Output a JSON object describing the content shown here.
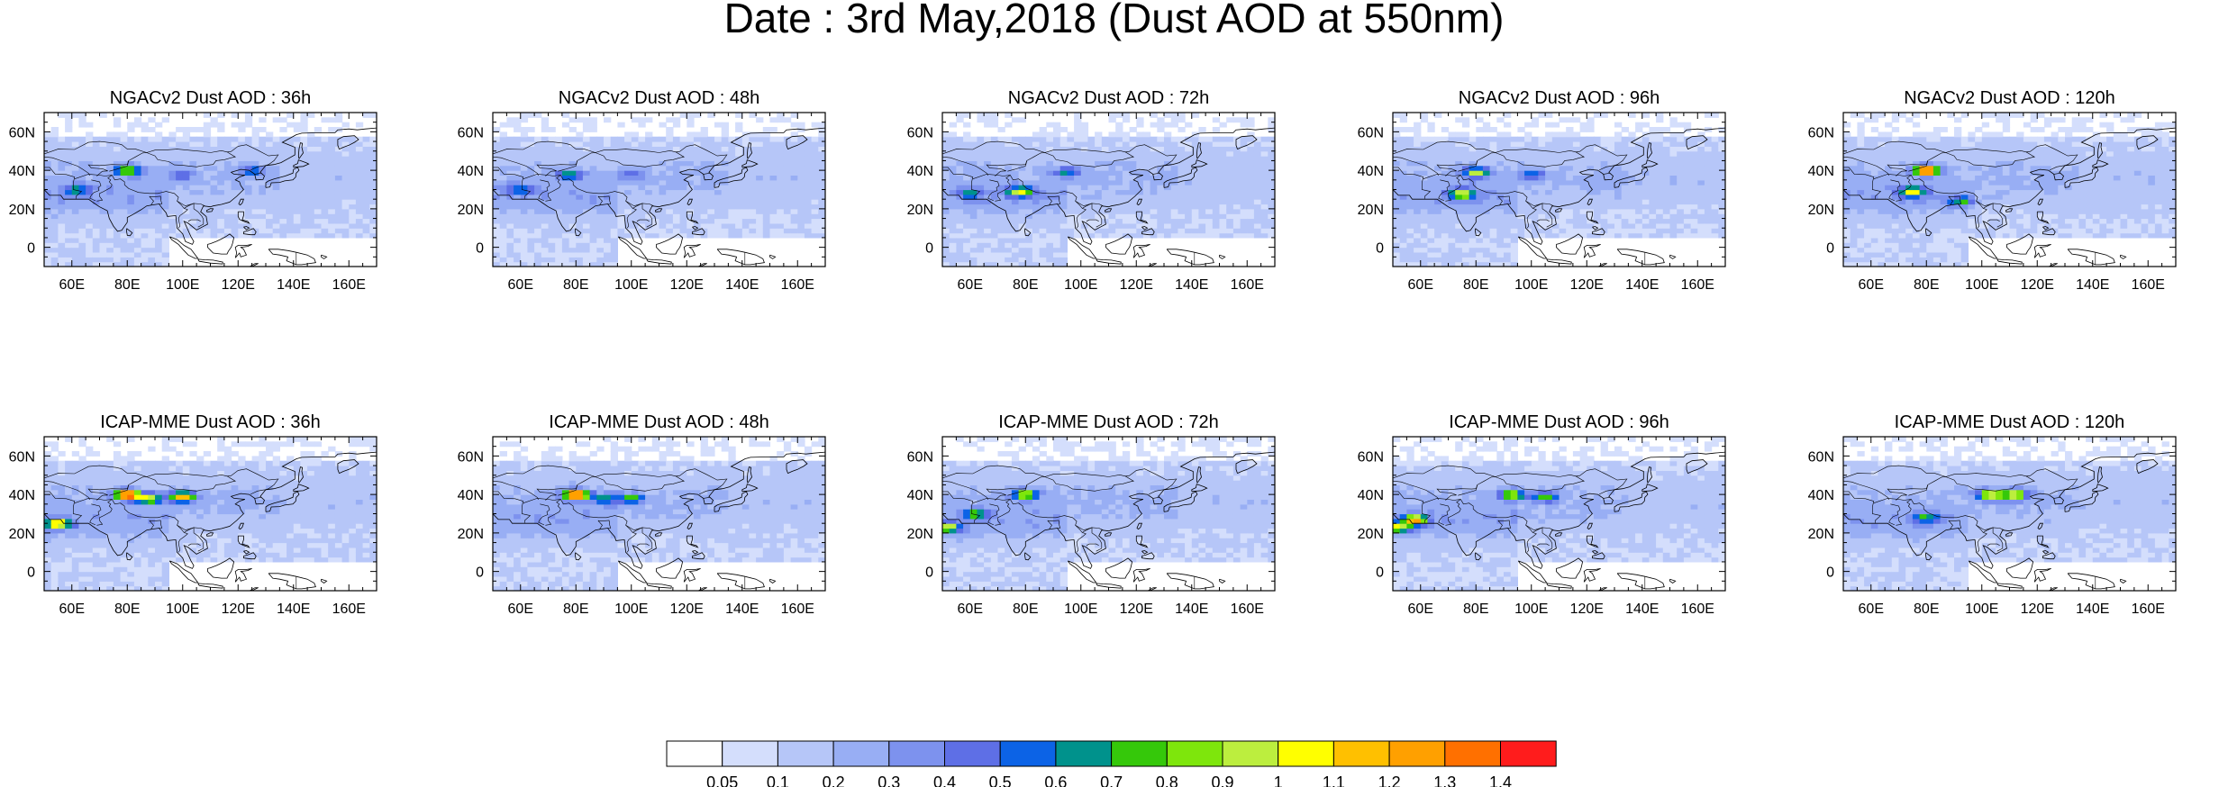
{
  "title": "Date : 3rd May,2018 (Dust AOD at 550nm)",
  "chart_data": {
    "type": "heatmap",
    "variable": "Dust AOD at 550nm",
    "date": "3rd May,2018",
    "x_axis": {
      "range": [
        50,
        170
      ],
      "ticks": [
        60,
        80,
        100,
        120,
        140,
        160
      ],
      "tick_labels": [
        "60E",
        "80E",
        "100E",
        "120E",
        "140E",
        "160E"
      ]
    },
    "y_axis": {
      "range": [
        -10,
        70
      ],
      "ticks": [
        0,
        20,
        40,
        60
      ],
      "tick_labels": [
        "0",
        "20N",
        "40N",
        "60N"
      ]
    },
    "panels": [
      {
        "title": "NGACv2 Dust AOD : 36h",
        "model": "NGACv2",
        "lead_hours": 36,
        "features": [
          {
            "lon": 80,
            "lat": 40,
            "aod": 0.8
          },
          {
            "lon": 62,
            "lat": 30,
            "aod": 0.45
          },
          {
            "lon": 100,
            "lat": 38,
            "aod": 0.3
          },
          {
            "lon": 125,
            "lat": 40,
            "aod": 0.4
          }
        ]
      },
      {
        "title": "NGACv2 Dust AOD : 48h",
        "model": "NGACv2",
        "lead_hours": 48,
        "features": [
          {
            "lon": 78,
            "lat": 38,
            "aod": 0.5
          },
          {
            "lon": 60,
            "lat": 30,
            "aod": 0.4
          },
          {
            "lon": 100,
            "lat": 38,
            "aod": 0.3
          }
        ]
      },
      {
        "title": "NGACv2 Dust AOD : 72h",
        "model": "NGACv2",
        "lead_hours": 72,
        "features": [
          {
            "lon": 78,
            "lat": 29,
            "aod": 0.8
          },
          {
            "lon": 95,
            "lat": 39,
            "aod": 0.45
          },
          {
            "lon": 60,
            "lat": 28,
            "aod": 0.45
          }
        ]
      },
      {
        "title": "NGACv2 Dust AOD : 96h",
        "model": "NGACv2",
        "lead_hours": 96,
        "features": [
          {
            "lon": 80,
            "lat": 39,
            "aod": 0.8
          },
          {
            "lon": 75,
            "lat": 28,
            "aod": 0.85
          },
          {
            "lon": 100,
            "lat": 38,
            "aod": 0.4
          }
        ]
      },
      {
        "title": "NGACv2 Dust AOD : 120h",
        "model": "NGACv2",
        "lead_hours": 120,
        "features": [
          {
            "lon": 80,
            "lat": 40,
            "aod": 1.4
          },
          {
            "lon": 75,
            "lat": 29,
            "aod": 0.8
          },
          {
            "lon": 93,
            "lat": 24,
            "aod": 0.5
          }
        ]
      },
      {
        "title": "ICAP-MME Dust AOD : 36h",
        "model": "ICAP-MME",
        "lead_hours": 36,
        "features": [
          {
            "lon": 80,
            "lat": 40,
            "aod": 1.4
          },
          {
            "lon": 100,
            "lat": 39,
            "aod": 1.0
          },
          {
            "lon": 88,
            "lat": 38,
            "aod": 0.8
          },
          {
            "lon": 55,
            "lat": 25,
            "aod": 1.0
          }
        ]
      },
      {
        "title": "ICAP-MME Dust AOD : 48h",
        "model": "ICAP-MME",
        "lead_hours": 48,
        "features": [
          {
            "lon": 80,
            "lat": 40,
            "aod": 1.4
          },
          {
            "lon": 100,
            "lat": 38,
            "aod": 0.6
          },
          {
            "lon": 90,
            "lat": 38,
            "aod": 0.5
          }
        ]
      },
      {
        "title": "ICAP-MME Dust AOD : 72h",
        "model": "ICAP-MME",
        "lead_hours": 72,
        "features": [
          {
            "lon": 80,
            "lat": 40,
            "aod": 0.8
          },
          {
            "lon": 52,
            "lat": 23,
            "aod": 0.8
          },
          {
            "lon": 62,
            "lat": 30,
            "aod": 0.6
          }
        ]
      },
      {
        "title": "ICAP-MME Dust AOD : 96h",
        "model": "ICAP-MME",
        "lead_hours": 96,
        "features": [
          {
            "lon": 93,
            "lat": 40,
            "aod": 0.8
          },
          {
            "lon": 58,
            "lat": 27,
            "aod": 1.0
          },
          {
            "lon": 52,
            "lat": 23,
            "aod": 0.8
          },
          {
            "lon": 105,
            "lat": 39,
            "aod": 0.6
          }
        ]
      },
      {
        "title": "ICAP-MME Dust AOD : 120h",
        "model": "ICAP-MME",
        "lead_hours": 120,
        "features": [
          {
            "lon": 103,
            "lat": 40,
            "aod": 1.0
          },
          {
            "lon": 112,
            "lat": 40,
            "aod": 0.9
          },
          {
            "lon": 80,
            "lat": 28,
            "aod": 0.5
          }
        ]
      }
    ],
    "colorbar": {
      "labels": [
        "0.05",
        "0.1",
        "0.2",
        "0.3",
        "0.4",
        "0.5",
        "0.6",
        "0.7",
        "0.8",
        "0.9",
        "1",
        "1.1",
        "1.2",
        "1.3",
        "1.4"
      ],
      "colors": [
        "#ffffff",
        "#d4defc",
        "#b6c6f8",
        "#98aef4",
        "#7d92ee",
        "#5e6fe6",
        "#0c63e6",
        "#00928c",
        "#35c80a",
        "#7ee60c",
        "#bcee3e",
        "#ffff00",
        "#ffc000",
        "#ffa000",
        "#ff7000",
        "#ff1c1c"
      ]
    }
  }
}
